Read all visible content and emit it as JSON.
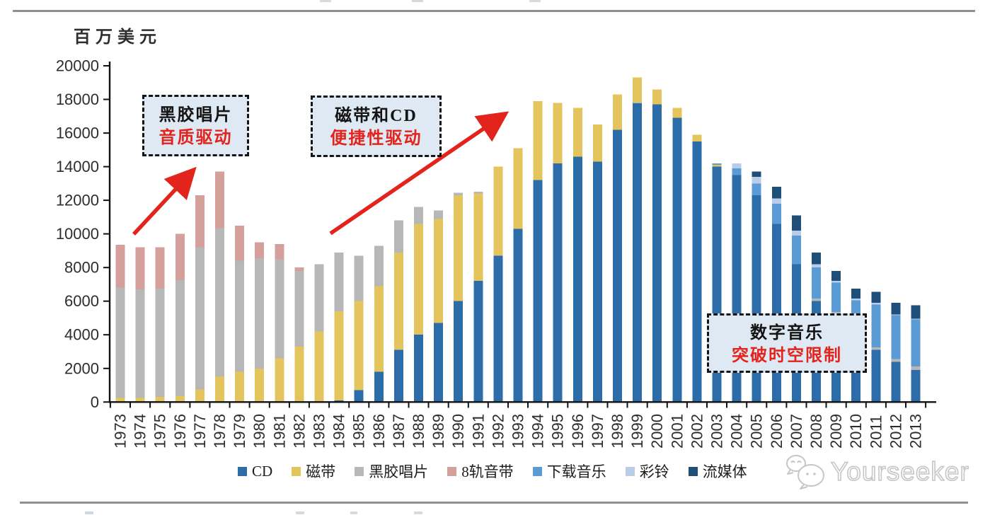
{
  "accent_red": "#E3241D",
  "axis_color": "#111111",
  "header": {
    "y_axis_title": "百万美元"
  },
  "y_axis": {
    "ticks": [
      0,
      2000,
      4000,
      6000,
      8000,
      10000,
      12000,
      14000,
      16000,
      18000,
      20000
    ]
  },
  "annotations": [
    {
      "line1": "黑胶唱片",
      "line2": "音质驱动"
    },
    {
      "line1": "磁带和CD",
      "line2": "便捷性驱动"
    },
    {
      "line1": "数字音乐",
      "line2": "突破时空限制"
    }
  ],
  "watermark": {
    "text": "Yourseeker"
  },
  "chart_data": {
    "type": "bar",
    "stacked": true,
    "title": "",
    "xlabel": "",
    "ylabel": "百万美元",
    "unit": "million USD",
    "ylim": [
      0,
      20000
    ],
    "y_tick_step": 2000,
    "grid": false,
    "legend_position": "bottom",
    "categories": [
      "1973",
      "1974",
      "1975",
      "1976",
      "1977",
      "1978",
      "1979",
      "1980",
      "1981",
      "1982",
      "1983",
      "1984",
      "1985",
      "1986",
      "1987",
      "1988",
      "1989",
      "1990",
      "1991",
      "1992",
      "1993",
      "1994",
      "1995",
      "1996",
      "1997",
      "1998",
      "1999",
      "2000",
      "2001",
      "2002",
      "2003",
      "2004",
      "2005",
      "2006",
      "2007",
      "2008",
      "2009",
      "2010",
      "2011",
      "2012",
      "2013"
    ],
    "series": [
      {
        "name": "CD",
        "color": "#2B6CA9",
        "values": [
          0,
          0,
          0,
          0,
          0,
          0,
          0,
          0,
          0,
          0,
          0,
          100,
          700,
          1800,
          3100,
          4000,
          4700,
          6000,
          7200,
          8700,
          10300,
          13200,
          14200,
          14600,
          14300,
          16200,
          17800,
          17700,
          16900,
          15500,
          14000,
          13500,
          12300,
          10600,
          8200,
          6000,
          5200,
          4400,
          3100,
          2400,
          1900
        ]
      },
      {
        "name": "磁带",
        "color": "#E4C45C",
        "values": [
          250,
          250,
          300,
          350,
          750,
          1500,
          1800,
          2000,
          2600,
          3300,
          4200,
          5300,
          5300,
          5100,
          5800,
          6600,
          6200,
          6300,
          5200,
          5300,
          4800,
          4700,
          3600,
          2900,
          2200,
          2100,
          1500,
          900,
          600,
          400,
          100,
          0,
          0,
          0,
          0,
          0,
          0,
          0,
          0,
          0,
          0
        ]
      },
      {
        "name": "黑胶唱片",
        "color": "#B7B7B7",
        "values": [
          6550,
          6450,
          6450,
          6900,
          8450,
          8850,
          6600,
          6550,
          5900,
          4500,
          4000,
          3500,
          2700,
          2400,
          1900,
          1000,
          500,
          150,
          100,
          0,
          0,
          0,
          0,
          0,
          0,
          0,
          0,
          0,
          0,
          0,
          0,
          0,
          0,
          0,
          0,
          150,
          150,
          150,
          150,
          160,
          210
        ]
      },
      {
        "name": "8轨音带",
        "color": "#D5A09B",
        "values": [
          2550,
          2500,
          2450,
          2750,
          3100,
          3350,
          2100,
          950,
          900,
          200,
          0,
          0,
          0,
          0,
          0,
          0,
          0,
          0,
          0,
          0,
          0,
          0,
          0,
          0,
          0,
          0,
          0,
          0,
          0,
          0,
          0,
          0,
          0,
          0,
          0,
          0,
          0,
          0,
          0,
          0,
          0
        ]
      },
      {
        "name": "下载音乐",
        "color": "#5B9BD5",
        "values": [
          0,
          0,
          0,
          0,
          0,
          0,
          0,
          0,
          0,
          0,
          0,
          0,
          0,
          0,
          0,
          0,
          0,
          0,
          0,
          0,
          0,
          0,
          0,
          0,
          0,
          0,
          0,
          0,
          0,
          0,
          100,
          400,
          700,
          1200,
          1700,
          1850,
          1750,
          1500,
          2550,
          2600,
          2800
        ]
      },
      {
        "name": "彩铃",
        "color": "#BACDE8",
        "values": [
          0,
          0,
          0,
          0,
          0,
          0,
          0,
          0,
          0,
          0,
          0,
          0,
          0,
          0,
          0,
          0,
          0,
          0,
          0,
          0,
          0,
          0,
          0,
          0,
          0,
          0,
          0,
          0,
          0,
          0,
          0,
          300,
          400,
          300,
          300,
          200,
          100,
          100,
          100,
          50,
          50
        ]
      },
      {
        "name": "流媒体",
        "color": "#1F4E79",
        "values": [
          0,
          0,
          0,
          0,
          0,
          0,
          0,
          0,
          0,
          0,
          0,
          0,
          0,
          0,
          0,
          0,
          0,
          0,
          0,
          0,
          0,
          0,
          0,
          0,
          0,
          0,
          0,
          0,
          0,
          0,
          0,
          0,
          300,
          700,
          900,
          700,
          600,
          600,
          650,
          700,
          800
        ]
      }
    ]
  }
}
